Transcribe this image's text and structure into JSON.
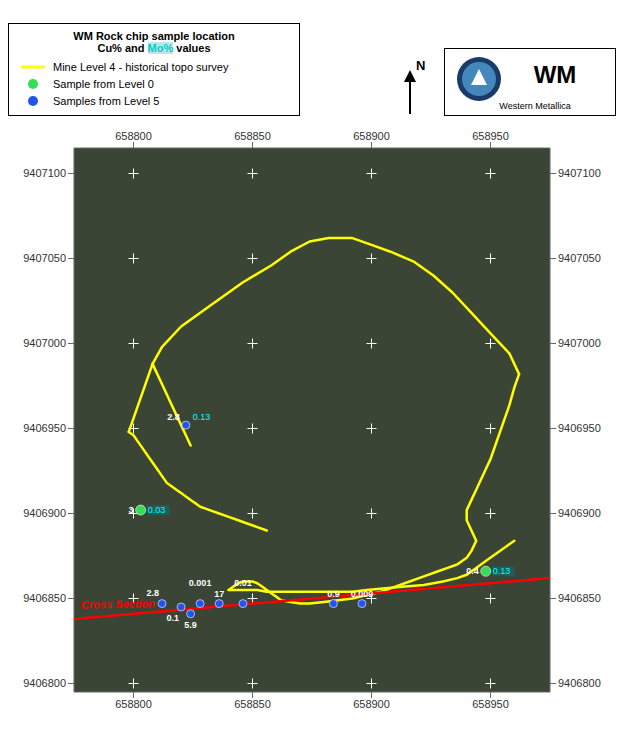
{
  "chart_data": {
    "type": "scatter",
    "title": "WM Rock chip sample location",
    "subtitle": [
      {
        "text": "Cu% and ",
        "color": "#000000"
      },
      {
        "text": "Mo%",
        "color": "#00cccc"
      },
      {
        "text": " values",
        "color": "#000000"
      }
    ],
    "xlim": [
      658775,
      658975
    ],
    "ylim": [
      9406795,
      9407115
    ],
    "xticks": [
      658800,
      658850,
      658900,
      658950
    ],
    "yticks": [
      9406800,
      9406850,
      9406900,
      9406950,
      9407000,
      9407050,
      9407100
    ],
    "grid": false,
    "legend": "upper left",
    "north_arrow": "N",
    "logo": [
      "WM",
      "Western Metallica"
    ],
    "annotations": [
      {
        "text": "Cross Section",
        "x": 658778,
        "y": 9406844,
        "color": "red"
      }
    ],
    "series": [
      {
        "type": "scatter",
        "marker": "plus",
        "color": "#ffffff",
        "x": [
          658800,
          658850,
          658900,
          658950,
          658800,
          658850,
          658900,
          658950,
          658800,
          658850,
          658900,
          658950,
          658800,
          658850,
          658900,
          658950,
          658800,
          658850,
          658900,
          658950,
          658800,
          658850,
          658900,
          658950,
          658800,
          658850,
          658900,
          658950
        ],
        "y": [
          9407100,
          9407100,
          9407100,
          9407100,
          9407050,
          9407050,
          9407050,
          9407050,
          9407000,
          9407000,
          9407000,
          9407000,
          9406950,
          9406950,
          9406950,
          9406950,
          9406900,
          9406900,
          9406900,
          9406900,
          9406850,
          9406850,
          9406850,
          9406850,
          9406800,
          9406800,
          9406800,
          9406800
        ]
      },
      {
        "name": "Mine Level 4 - historical topo survey",
        "type": "line",
        "color": "#ffff00",
        "segments": [
          {
            "x": [
              658808,
              658812,
              658820,
              658832,
              658846,
              658858,
              658866,
              658874,
              658882,
              658892,
              658900,
              658908,
              658918,
              658926,
              658934,
              658942,
              658950,
              658958,
              658962
            ],
            "y": [
              9406988,
              9406998,
              9407010,
              9407022,
              9407036,
              9407046,
              9407054,
              9407060,
              9407062,
              9407062,
              9407058,
              9407054,
              9407048,
              9407040,
              9407030,
              9407018,
              9407006,
              9406994,
              9406982
            ]
          },
          {
            "x": [
              658962,
              658960,
              658958,
              658956,
              658954,
              658952,
              658950,
              658948,
              658946,
              658944,
              658942,
              658940,
              658940,
              658942,
              658944,
              658942,
              658940,
              658936,
              658932,
              658928,
              658922,
              658916,
              658910,
              658904,
              658898,
              658892,
              658886,
              658880,
              658874,
              658870,
              658866,
              658862,
              658860,
              658858,
              658856,
              658854,
              658852,
              658850,
              658848,
              658846,
              658844,
              658842,
              658840
            ],
            "y": [
              9406982,
              9406974,
              9406964,
              9406956,
              9406948,
              9406940,
              9406932,
              9406926,
              9406920,
              9406914,
              9406908,
              9406902,
              9406896,
              9406890,
              9406884,
              9406878,
              9406874,
              9406870,
              9406868,
              9406866,
              9406863,
              9406860,
              9406857,
              9406854,
              9406852,
              9406850,
              9406849,
              9406848,
              9406847,
              9406847,
              9406848,
              9406849,
              9406851,
              9406853,
              9406855,
              9406857,
              9406859,
              9406860,
              9406860,
              9406860,
              9406859,
              9406857,
              9406855
            ]
          },
          {
            "x": [
              658808,
              658810,
              658812,
              658814,
              658816,
              658818,
              658820,
              658822,
              658824
            ],
            "y": [
              9406988,
              9406982,
              9406976,
              9406970,
              9406964,
              9406958,
              9406952,
              9406946,
              9406940
            ]
          },
          {
            "x": [
              658808,
              658806,
              658804,
              658802,
              658800,
              658798
            ],
            "y": [
              9406988,
              9406980,
              9406972,
              9406964,
              9406956,
              9406948
            ]
          },
          {
            "x": [
              658798,
              658800,
              658802,
              658804,
              658806,
              658808,
              658810,
              658812,
              658814,
              658816,
              658818,
              658820,
              658822,
              658824,
              658826
            ],
            "y": [
              9406948,
              9406946,
              9406942,
              9406938,
              9406934,
              9406930,
              9406926,
              9406922,
              9406918,
              9406916,
              9406914,
              9406912,
              9406910,
              9406908,
              9406906
            ]
          },
          {
            "x": [
              658826,
              658828,
              658832,
              658836,
              658840,
              658844,
              658848,
              658852,
              658856
            ],
            "y": [
              9406906,
              9406904,
              9406902,
              9406900,
              9406898,
              9406896,
              9406894,
              9406892,
              9406890
            ]
          },
          {
            "x": [
              658840,
              658844,
              658848,
              658852,
              658856,
              658862,
              658868,
              658874,
              658880,
              658886,
              658892,
              658898,
              658906,
              658914,
              658922,
              658930,
              658936,
              658940
            ],
            "y": [
              9406855,
              9406855,
              9406855,
              9406855,
              9406854,
              9406854,
              9406854,
              9406854,
              9406854,
              9406854,
              9406854,
              9406855,
              9406856,
              9406857,
              9406858,
              9406860,
              9406862,
              9406864
            ]
          },
          {
            "x": [
              658940,
              658944,
              658948,
              658952,
              658956,
              658960
            ],
            "y": [
              9406864,
              9406868,
              9406872,
              9406876,
              9406880,
              9406884
            ]
          }
        ]
      },
      {
        "type": "line",
        "color": "red",
        "x": [
          658775,
          658975
        ],
        "y": [
          9406838,
          9406862
        ]
      },
      {
        "name": "Sample from Level 0",
        "type": "scatter",
        "color": "#33dd55",
        "x": [
          658803,
          658948
        ],
        "y": [
          9406902,
          9406866
        ],
        "cu": [
          "3",
          "0.4"
        ],
        "mo": [
          "0.03",
          "0.13"
        ]
      },
      {
        "name": "Samples from Level 5",
        "type": "scatter",
        "color": "#2255ee",
        "x": [
          658822,
          658812,
          658820,
          658828,
          658836,
          658846,
          658884,
          658896,
          658824
        ],
        "y": [
          9406952,
          9406847,
          9406845,
          9406847,
          9406847,
          9406847,
          9406847,
          9406847,
          9406841
        ],
        "cu": [
          "2.8",
          "2.8",
          "0.1",
          "0.001",
          "17",
          "0.01",
          "0.9",
          "0.009",
          "5.9"
        ],
        "mo": [
          "0.13",
          null,
          null,
          null,
          null,
          null,
          null,
          null,
          null
        ]
      }
    ]
  }
}
